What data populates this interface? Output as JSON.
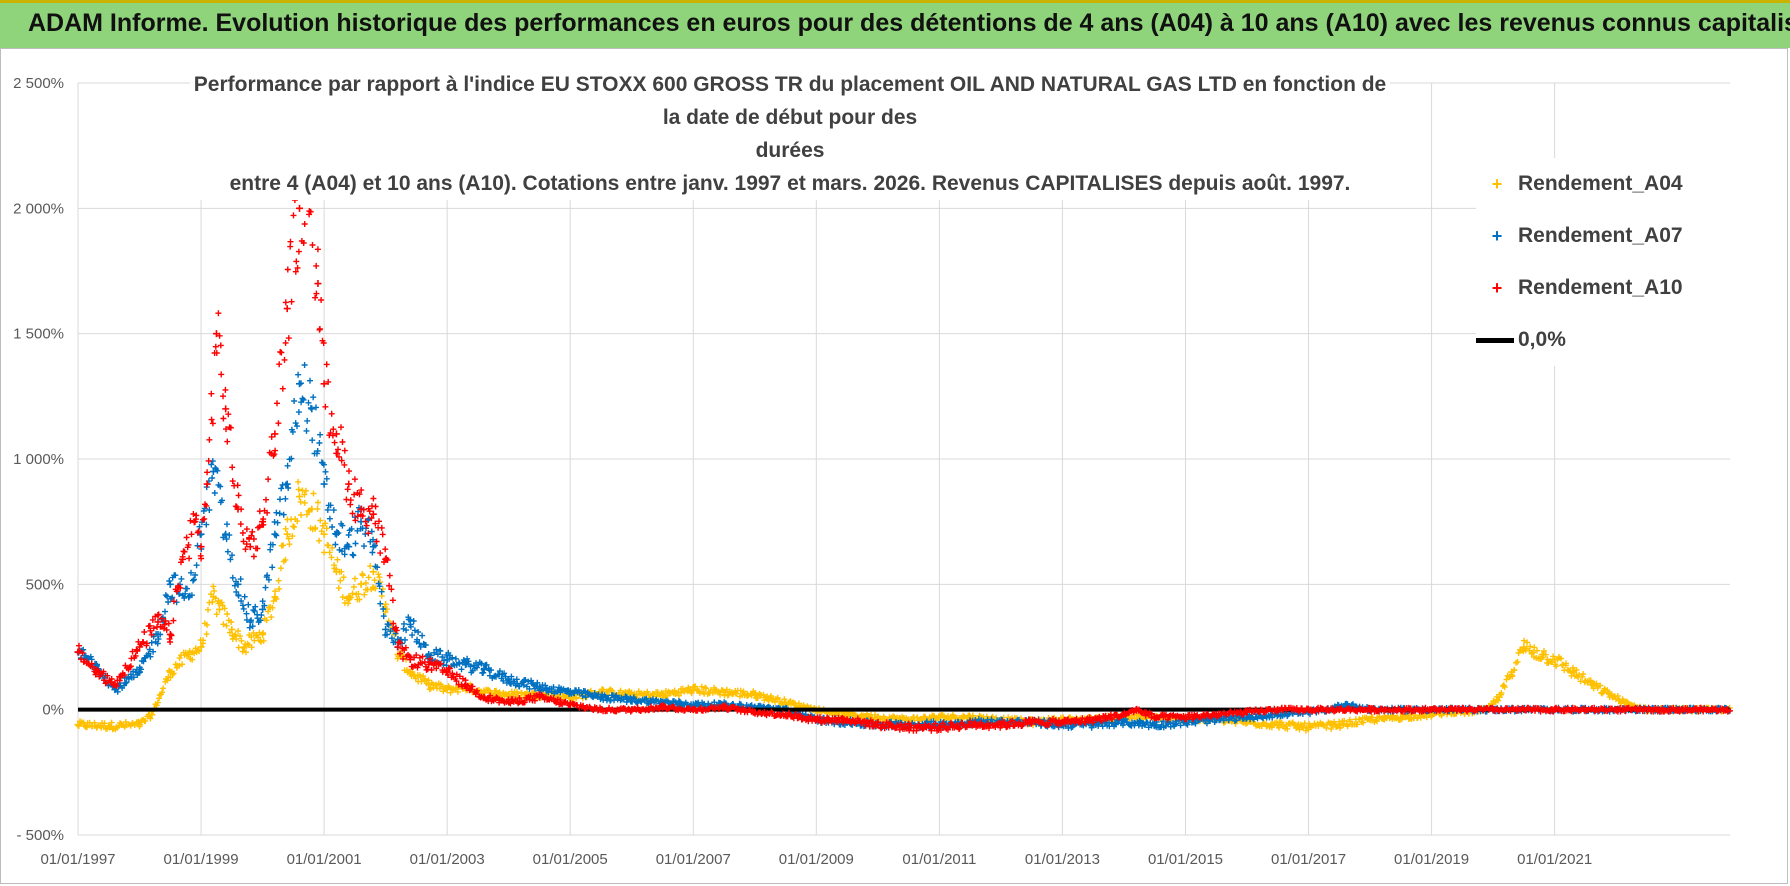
{
  "banner": {
    "title": "ADAM Informe. Evolution historique des performances en euros pour des détentions de 4 ans (A04) à 10 ans (A10) avec les revenus connus capitalisés"
  },
  "colors": {
    "banner_bg": "#8fd47a",
    "banner_border": "#c9b200",
    "a04": "#ffc000",
    "a07": "#0070c0",
    "a10": "#ff0000",
    "zero_line": "#000000",
    "grid": "#d9d9d9"
  },
  "chart_data": {
    "type": "scatter",
    "title_lines": [
      "Performance par rapport à l'indice EU STOXX 600 GROSS TR  du placement OIL AND NATURAL GAS LTD en fonction de la date de début pour des",
      "durées",
      "entre 4 (A04) et 10 ans (A10). Cotations entre janv. 1997 et mars. 2026. Revenus CAPITALISES depuis août. 1997."
    ],
    "xlabel": "",
    "ylabel": "",
    "xlim": [
      1997.0,
      2023.85
    ],
    "ylim": [
      -500,
      2500
    ],
    "y_ticks": [
      -500,
      0,
      500,
      1000,
      1500,
      2000,
      2500
    ],
    "y_tick_labels": [
      "- 500%",
      "0%",
      "500%",
      "1 000%",
      "1 500%",
      "2 000%",
      "2 500%"
    ],
    "x_tick_labels": [
      "01/01/1997",
      "01/01/1999",
      "01/01/2001",
      "01/01/2003",
      "01/01/2005",
      "01/01/2007",
      "01/01/2009",
      "01/01/2011",
      "01/01/2013",
      "01/01/2015",
      "01/01/2017",
      "01/01/2019",
      "01/01/2021"
    ],
    "x_tick_years": [
      1997,
      1999,
      2001,
      2003,
      2005,
      2007,
      2009,
      2011,
      2013,
      2015,
      2017,
      2019,
      2021
    ],
    "legend_placement": "top-right",
    "series": [
      {
        "name": "Rendement_A04",
        "marker": "+",
        "color": "#ffc000",
        "x": [
          1997.0,
          1997.5,
          1998.0,
          1998.2,
          1998.5,
          1998.8,
          1999.0,
          1999.2,
          1999.3,
          1999.5,
          1999.7,
          2000.0,
          2000.2,
          2000.4,
          2000.6,
          2000.8,
          2001.0,
          2001.2,
          2001.4,
          2001.6,
          2001.8,
          2002.0,
          2002.2,
          2002.4,
          2002.7,
          2003.0,
          2003.3,
          2003.6,
          2004.0,
          2004.5,
          2005.0,
          2005.5,
          2006.0,
          2006.5,
          2007.0,
          2007.5,
          2008.0,
          2008.5,
          2009.0,
          2009.5,
          2010.0,
          2010.5,
          2011.0,
          2011.5,
          2012.0,
          2012.5,
          2013.0,
          2013.5,
          2014.0,
          2014.5,
          2015.0,
          2015.5,
          2016.0,
          2016.5,
          2017.0,
          2017.5,
          2018.0,
          2018.5,
          2019.0,
          2019.3,
          2019.6,
          2019.9,
          2020.1,
          2020.3,
          2020.5,
          2020.8,
          2021.0,
          2021.3,
          2021.6,
          2021.9,
          2022.2,
          2022.5,
          2022.8,
          2023.1,
          2023.4,
          2023.8
        ],
        "values": [
          -60,
          -65,
          -60,
          -20,
          150,
          220,
          250,
          450,
          400,
          320,
          250,
          300,
          450,
          700,
          850,
          800,
          700,
          550,
          450,
          500,
          550,
          420,
          220,
          150,
          100,
          80,
          90,
          70,
          60,
          60,
          50,
          70,
          60,
          60,
          80,
          70,
          60,
          30,
          0,
          -20,
          -30,
          -40,
          -30,
          -30,
          -40,
          -50,
          -40,
          -40,
          -30,
          -30,
          -40,
          -40,
          -50,
          -60,
          -70,
          -60,
          -40,
          -30,
          -20,
          -10,
          -10,
          0,
          50,
          150,
          250,
          220,
          200,
          150,
          100,
          60,
          20,
          0,
          0,
          0,
          0,
          0
        ]
      },
      {
        "name": "Rendement_A07",
        "marker": "+",
        "color": "#0070c0",
        "x": [
          1997.0,
          1997.3,
          1997.6,
          1998.0,
          1998.3,
          1998.5,
          1998.8,
          1999.0,
          1999.2,
          1999.4,
          1999.6,
          1999.8,
          2000.0,
          2000.2,
          2000.4,
          2000.6,
          2000.8,
          2001.0,
          2001.2,
          2001.4,
          2001.6,
          2001.8,
          2002.0,
          2002.2,
          2002.4,
          2002.7,
          2003.0,
          2003.3,
          2003.6,
          2004.0,
          2004.5,
          2005.0,
          2005.5,
          2006.0,
          2006.5,
          2007.0,
          2007.5,
          2008.0,
          2008.5,
          2009.0,
          2009.5,
          2010.0,
          2010.5,
          2011.0,
          2011.5,
          2012.0,
          2012.5,
          2013.0,
          2013.5,
          2014.0,
          2014.5,
          2015.0,
          2015.5,
          2016.0,
          2016.5,
          2017.0,
          2017.3,
          2017.6,
          2018.0,
          2018.5,
          2019.0,
          2019.5,
          2020.0,
          2020.5,
          2021.0,
          2021.5,
          2022.0,
          2022.5,
          2023.0,
          2023.8
        ],
        "values": [
          230,
          180,
          80,
          150,
          300,
          500,
          450,
          700,
          950,
          700,
          500,
          350,
          400,
          700,
          900,
          1300,
          1200,
          900,
          700,
          650,
          750,
          650,
          320,
          280,
          340,
          220,
          200,
          180,
          160,
          120,
          90,
          70,
          50,
          40,
          30,
          20,
          20,
          10,
          0,
          -40,
          -50,
          -60,
          -60,
          -60,
          -50,
          -50,
          -50,
          -60,
          -60,
          -50,
          -60,
          -50,
          -40,
          -30,
          -20,
          -10,
          0,
          20,
          0,
          0,
          0,
          0,
          0,
          0,
          0,
          0,
          0,
          0,
          0,
          0
        ]
      },
      {
        "name": "Rendement_A10",
        "marker": "+",
        "color": "#ff0000",
        "x": [
          1997.0,
          1997.3,
          1997.6,
          1998.0,
          1998.3,
          1998.5,
          1998.7,
          1998.9,
          1999.0,
          1999.1,
          1999.25,
          1999.4,
          1999.6,
          1999.8,
          2000.0,
          2000.2,
          2000.4,
          2000.6,
          2000.75,
          2000.9,
          2001.0,
          2001.2,
          2001.4,
          2001.6,
          2001.8,
          2002.0,
          2002.2,
          2002.4,
          2002.7,
          2003.0,
          2003.3,
          2003.6,
          2004.0,
          2004.5,
          2005.0,
          2005.5,
          2006.0,
          2006.5,
          2007.0,
          2007.5,
          2008.0,
          2008.5,
          2009.0,
          2009.5,
          2010.0,
          2010.5,
          2011.0,
          2011.5,
          2012.0,
          2012.5,
          2013.0,
          2013.5,
          2014.0,
          2014.2,
          2014.5,
          2015.0,
          2015.5,
          2016.0,
          2016.5,
          2017.0,
          2017.5,
          2018.0,
          2019.0,
          2020.0,
          2021.0,
          2022.0,
          2023.0,
          2023.8
        ],
        "values": [
          230,
          150,
          100,
          250,
          350,
          300,
          600,
          750,
          650,
          900,
          1500,
          1200,
          800,
          650,
          750,
          1100,
          1600,
          2000,
          2100,
          1700,
          1300,
          1100,
          900,
          800,
          780,
          600,
          250,
          200,
          180,
          150,
          100,
          50,
          30,
          50,
          20,
          0,
          0,
          10,
          0,
          10,
          -10,
          -20,
          -40,
          -40,
          -60,
          -70,
          -70,
          -60,
          -60,
          -50,
          -50,
          -40,
          -20,
          0,
          -30,
          -30,
          -20,
          -10,
          0,
          0,
          0,
          0,
          0,
          0,
          0,
          0,
          0,
          0
        ]
      }
    ],
    "reference_line": {
      "name": "0,0%",
      "y": 0
    }
  }
}
